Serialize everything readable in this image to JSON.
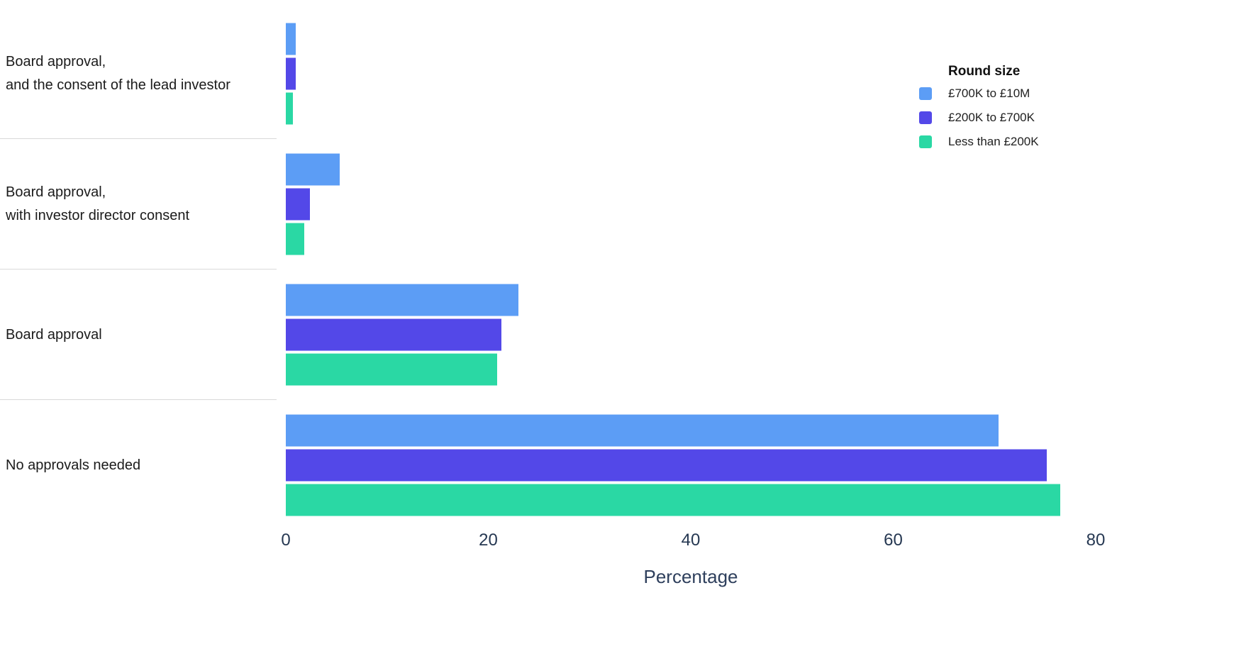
{
  "chart_data": {
    "type": "bar",
    "orientation": "horizontal",
    "title": "",
    "xlabel": "Percentage",
    "ylabel": "",
    "xlim": [
      0,
      80
    ],
    "x_ticks": [
      0,
      20,
      40,
      60,
      80
    ],
    "grid": false,
    "legend_title": "Round size",
    "legend_position": "top-right",
    "categories": [
      {
        "lines": [
          "Board approval,",
          "and the consent of the lead investor"
        ]
      },
      {
        "lines": [
          "Board approval,",
          "with investor director consent"
        ]
      },
      {
        "lines": [
          "Board approval"
        ]
      },
      {
        "lines": [
          "No approvals needed"
        ]
      }
    ],
    "series": [
      {
        "name": "£700K to £10M",
        "color": "#5c9df5",
        "values": [
          1.0,
          5.3,
          23.0,
          70.4
        ]
      },
      {
        "name": "£200K to £700K",
        "color": "#5348e8",
        "values": [
          1.0,
          2.4,
          21.3,
          75.2
        ]
      },
      {
        "name": "Less than £200K",
        "color": "#2ad8a4",
        "values": [
          0.7,
          1.8,
          20.9,
          76.5
        ]
      }
    ]
  }
}
